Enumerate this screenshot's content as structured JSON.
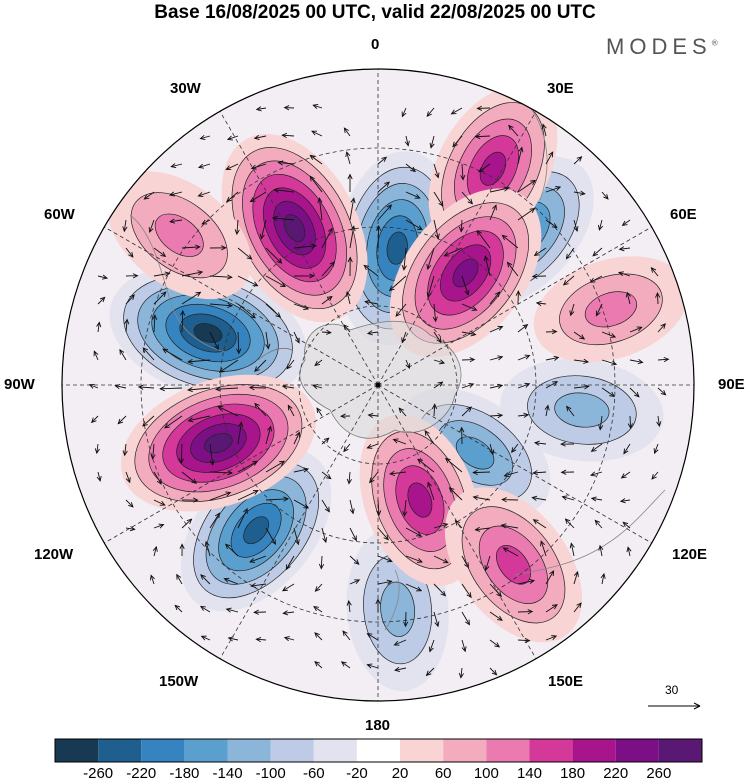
{
  "title": "Base 16/08/2025 00 UTC, valid 22/08/2025 00 UTC",
  "brand": "MODES",
  "brand_mark": "®",
  "longitude_labels": [
    "0",
    "30E",
    "60E",
    "90E",
    "120E",
    "150E",
    "180",
    "150W",
    "120W",
    "90W",
    "60W",
    "30W"
  ],
  "vector_scale_label": "30",
  "colorbar": {
    "colors": [
      "#173a52",
      "#1f5f8f",
      "#3583bf",
      "#5b9fcf",
      "#8cb5da",
      "#bdcbe6",
      "#e3e3f0",
      "#ffffff",
      "#f8d4d4",
      "#f3acbe",
      "#ea7ab0",
      "#d4399a",
      "#a8148c",
      "#7d0f86",
      "#5a1875"
    ],
    "labels": [
      "-260",
      "-220",
      "-180",
      "-140",
      "-100",
      "-60",
      "-20",
      "20",
      "60",
      "100",
      "140",
      "180",
      "220",
      "260"
    ]
  },
  "anomaly_cells": [
    {
      "sign": "neg",
      "label": "0E low",
      "lon": 8,
      "colat": 35,
      "amp": -230
    },
    {
      "sign": "neg",
      "label": "45E low",
      "lon": 43,
      "colat": 53,
      "amp": -160
    },
    {
      "sign": "neg",
      "label": "75W low",
      "lon": -73,
      "colat": 45,
      "amp": -260
    },
    {
      "sign": "neg",
      "label": "140W low",
      "lon": -140,
      "colat": 48,
      "amp": -200
    },
    {
      "sign": "neg",
      "label": "125E low",
      "lon": 125,
      "colat": 30,
      "amp": -120
    },
    {
      "sign": "neg",
      "label": "180 low",
      "lon": 175,
      "colat": 57,
      "amp": -100
    },
    {
      "sign": "neg",
      "label": "95E low",
      "lon": 97,
      "colat": 52,
      "amp": -100
    },
    {
      "sign": "pos",
      "label": "30W high",
      "lon": -28,
      "colat": 45,
      "amp": 260
    },
    {
      "sign": "pos",
      "label": "25E high",
      "lon": 28,
      "colat": 62,
      "amp": 160
    },
    {
      "sign": "pos",
      "label": "30E high",
      "lon": 38,
      "colat": 36,
      "amp": 220
    },
    {
      "sign": "pos",
      "label": "110W high",
      "lon": -110,
      "colat": 43,
      "amp": 260
    },
    {
      "sign": "pos",
      "label": "155E high",
      "lon": 160,
      "colat": 31,
      "amp": 160
    },
    {
      "sign": "pos",
      "label": "140E high",
      "lon": 143,
      "colat": 57,
      "amp": 150
    },
    {
      "sign": "pos",
      "label": "70E high",
      "lon": 72,
      "colat": 62,
      "amp": 80
    },
    {
      "sign": "pos",
      "label": "55W high",
      "lon": -53,
      "colat": 63,
      "amp": 100
    }
  ]
}
